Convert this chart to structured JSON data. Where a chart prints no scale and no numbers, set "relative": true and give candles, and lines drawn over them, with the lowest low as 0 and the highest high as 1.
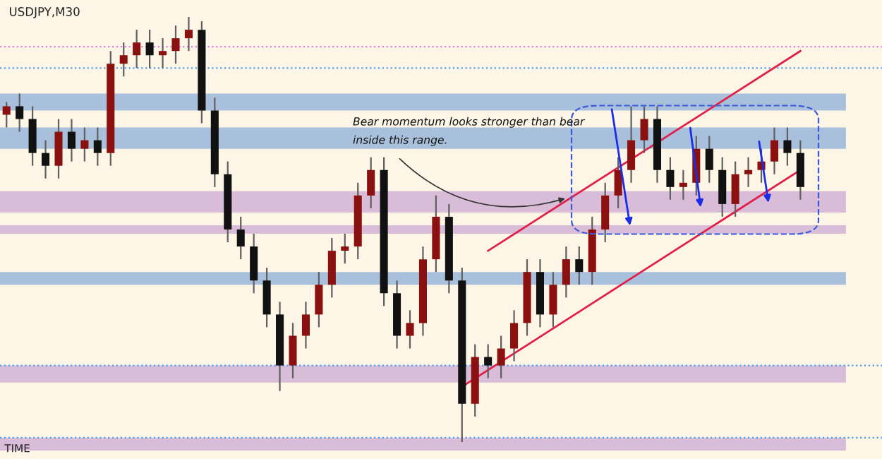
{
  "chart_data": {
    "type": "candlestick",
    "title": "USDJPY,M30",
    "relative": true,
    "categories": [
      null,
      null,
      null,
      null,
      null,
      null,
      null,
      null,
      null,
      null,
      null,
      null,
      null,
      null,
      null,
      null,
      null,
      null,
      null,
      null,
      null,
      null,
      null,
      null,
      null,
      null,
      null,
      null,
      null,
      null,
      null,
      null,
      null,
      null,
      null,
      null,
      null,
      null,
      null,
      null,
      null,
      null,
      null,
      null,
      null,
      null,
      null,
      null,
      null,
      null,
      null,
      null,
      null,
      null,
      null,
      null,
      null,
      null,
      null,
      null,
      null,
      null
    ],
    "ohlc": [
      [
        0.77,
        0.8,
        0.74,
        0.79
      ],
      [
        0.79,
        0.82,
        0.73,
        0.76
      ],
      [
        0.76,
        0.79,
        0.65,
        0.68
      ],
      [
        0.68,
        0.71,
        0.62,
        0.65
      ],
      [
        0.65,
        0.76,
        0.62,
        0.73
      ],
      [
        0.73,
        0.76,
        0.66,
        0.69
      ],
      [
        0.69,
        0.74,
        0.66,
        0.71
      ],
      [
        0.71,
        0.74,
        0.65,
        0.68
      ],
      [
        0.68,
        0.92,
        0.65,
        0.89
      ],
      [
        0.89,
        0.94,
        0.86,
        0.91
      ],
      [
        0.91,
        0.97,
        0.88,
        0.94
      ],
      [
        0.94,
        0.97,
        0.88,
        0.91
      ],
      [
        0.91,
        0.95,
        0.88,
        0.92
      ],
      [
        0.92,
        0.98,
        0.89,
        0.95
      ],
      [
        0.95,
        1.0,
        0.92,
        0.97
      ],
      [
        0.97,
        0.99,
        0.75,
        0.78
      ],
      [
        0.78,
        0.81,
        0.6,
        0.63
      ],
      [
        0.63,
        0.66,
        0.47,
        0.5
      ],
      [
        0.5,
        0.53,
        0.43,
        0.46
      ],
      [
        0.46,
        0.49,
        0.35,
        0.38
      ],
      [
        0.38,
        0.41,
        0.27,
        0.3
      ],
      [
        0.3,
        0.33,
        0.12,
        0.18
      ],
      [
        0.18,
        0.28,
        0.15,
        0.25
      ],
      [
        0.25,
        0.33,
        0.22,
        0.3
      ],
      [
        0.3,
        0.4,
        0.27,
        0.37
      ],
      [
        0.37,
        0.48,
        0.34,
        0.45
      ],
      [
        0.45,
        0.49,
        0.42,
        0.46
      ],
      [
        0.46,
        0.61,
        0.43,
        0.58
      ],
      [
        0.58,
        0.67,
        0.55,
        0.64
      ],
      [
        0.64,
        0.67,
        0.32,
        0.35
      ],
      [
        0.35,
        0.38,
        0.22,
        0.25
      ],
      [
        0.25,
        0.31,
        0.22,
        0.28
      ],
      [
        0.28,
        0.46,
        0.25,
        0.43
      ],
      [
        0.43,
        0.58,
        0.4,
        0.53
      ],
      [
        0.53,
        0.56,
        0.35,
        0.38
      ],
      [
        0.38,
        0.41,
        0.0,
        0.09
      ],
      [
        0.09,
        0.23,
        0.06,
        0.2
      ],
      [
        0.2,
        0.23,
        0.15,
        0.18
      ],
      [
        0.18,
        0.25,
        0.15,
        0.22
      ],
      [
        0.22,
        0.31,
        0.19,
        0.28
      ],
      [
        0.28,
        0.43,
        0.25,
        0.4
      ],
      [
        0.4,
        0.43,
        0.27,
        0.3
      ],
      [
        0.3,
        0.4,
        0.27,
        0.37
      ],
      [
        0.37,
        0.46,
        0.34,
        0.43
      ],
      [
        0.43,
        0.46,
        0.37,
        0.4
      ],
      [
        0.4,
        0.53,
        0.37,
        0.5
      ],
      [
        0.5,
        0.61,
        0.47,
        0.58
      ],
      [
        0.58,
        0.67,
        0.55,
        0.64
      ],
      [
        0.64,
        0.79,
        0.61,
        0.71
      ],
      [
        0.71,
        0.79,
        0.68,
        0.76
      ],
      [
        0.76,
        0.79,
        0.61,
        0.64
      ],
      [
        0.64,
        0.67,
        0.57,
        0.6
      ],
      [
        0.6,
        0.64,
        0.57,
        0.61
      ],
      [
        0.61,
        0.72,
        0.58,
        0.69
      ],
      [
        0.69,
        0.72,
        0.61,
        0.64
      ],
      [
        0.64,
        0.67,
        0.53,
        0.56
      ],
      [
        0.56,
        0.66,
        0.53,
        0.63
      ],
      [
        0.63,
        0.67,
        0.6,
        0.64
      ],
      [
        0.64,
        0.69,
        0.61,
        0.66
      ],
      [
        0.66,
        0.74,
        0.63,
        0.71
      ],
      [
        0.71,
        0.74,
        0.65,
        0.68
      ],
      [
        0.68,
        0.71,
        0.57,
        0.6
      ]
    ],
    "series": [
      {
        "type": "line",
        "color": "#e0204a",
        "values": [
          null,
          null,
          null,
          null,
          null,
          null,
          null,
          null,
          null,
          null,
          null,
          null,
          null,
          null,
          null,
          null,
          null,
          null,
          null,
          null,
          null,
          null,
          null,
          null,
          null,
          null,
          null,
          null,
          null,
          null,
          null,
          null,
          null,
          null,
          null,
          null,
          null,
          0.45,
          null,
          null,
          null,
          null,
          null,
          null,
          null,
          null,
          null,
          null,
          null,
          null,
          null,
          null,
          null,
          null,
          null,
          null,
          null,
          null,
          null,
          null,
          null,
          0.92
        ]
      },
      {
        "type": "line",
        "color": "#e0204a",
        "values": [
          null,
          null,
          null,
          null,
          null,
          null,
          null,
          null,
          null,
          null,
          null,
          null,
          null,
          null,
          null,
          null,
          null,
          null,
          null,
          null,
          null,
          null,
          null,
          null,
          null,
          null,
          null,
          null,
          null,
          null,
          null,
          null,
          null,
          null,
          null,
          0.13,
          null,
          null,
          null,
          null,
          null,
          null,
          null,
          null,
          null,
          null,
          null,
          null,
          null,
          null,
          null,
          null,
          null,
          null,
          null,
          null,
          null,
          null,
          null,
          null,
          null,
          0.64
        ]
      }
    ],
    "bands": [
      {
        "axis": "y",
        "from": 0.78,
        "to": 0.82,
        "color": "#a9c0dc"
      },
      {
        "axis": "y",
        "from": 0.69,
        "to": 0.74,
        "color": "#a9c0dc"
      },
      {
        "axis": "y",
        "from": 0.54,
        "to": 0.59,
        "color": "#d8bcd8"
      },
      {
        "axis": "y",
        "from": 0.49,
        "to": 0.51,
        "color": "#d8bcd8"
      },
      {
        "axis": "y",
        "from": 0.37,
        "to": 0.4,
        "color": "#a9c0dc"
      },
      {
        "axis": "y",
        "from": 0.14,
        "to": 0.18,
        "color": "#d8bcd8"
      },
      {
        "axis": "y",
        "from": -0.02,
        "to": 0.01,
        "color": "#d8bcd8"
      }
    ],
    "ref_lines": [
      {
        "axis": "y",
        "value": 0.93,
        "color": "#e080e0",
        "line_style": "dotted"
      },
      {
        "axis": "y",
        "value": 0.88,
        "color": "#4aa0f0",
        "line_style": "dotted"
      },
      {
        "axis": "y",
        "value": 0.18,
        "color": "#4aa0f0",
        "line_style": "dotted"
      },
      {
        "axis": "y",
        "value": 0.01,
        "color": "#4aa0f0",
        "line_style": "dotted"
      }
    ],
    "annotations": [
      "Bear momentum looks stronger than bear",
      "inside this range.",
      "TIME"
    ],
    "legend": false
  }
}
